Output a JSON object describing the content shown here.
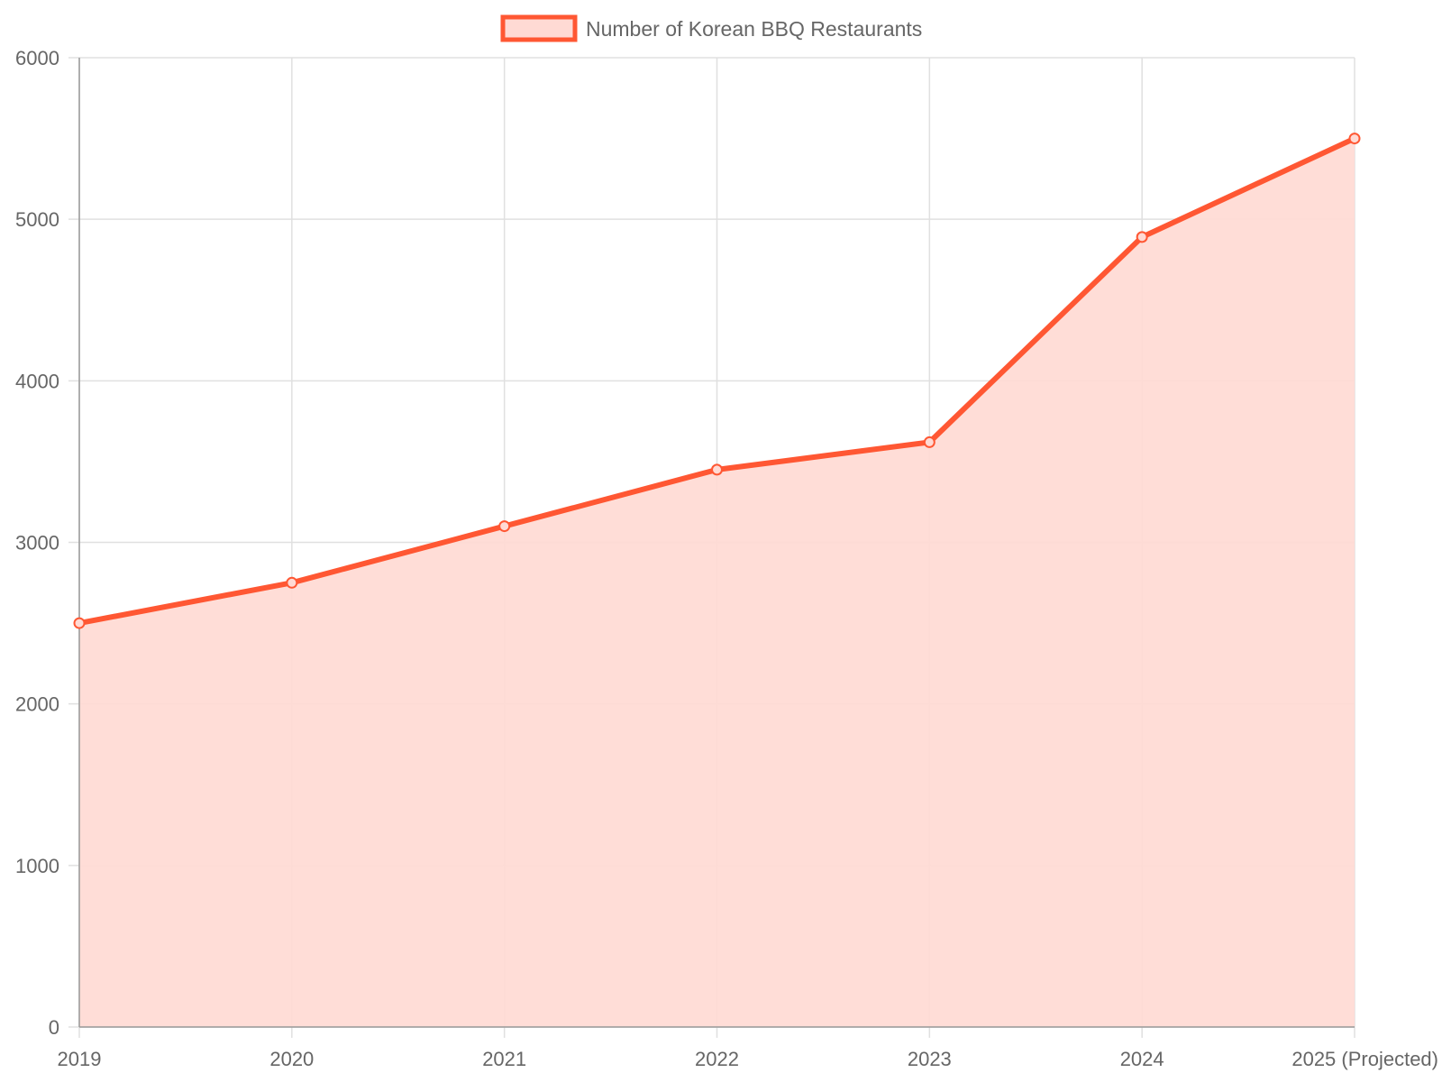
{
  "chart_data": {
    "type": "area",
    "categories": [
      "2019",
      "2020",
      "2021",
      "2022",
      "2023",
      "2024",
      "2025 (Projected)"
    ],
    "series": [
      {
        "name": "Number of Korean BBQ Restaurants",
        "values": [
          2500,
          2750,
          3100,
          3450,
          3620,
          4890,
          5500
        ],
        "color": "#ff5733",
        "fill": "#ffdad4"
      }
    ],
    "ylim": [
      0,
      6000
    ],
    "yticks": [
      0,
      1000,
      2000,
      3000,
      4000,
      5000,
      6000
    ],
    "grid": true,
    "legend_position": "top-center",
    "xlabel": "",
    "ylabel": "",
    "title": ""
  }
}
